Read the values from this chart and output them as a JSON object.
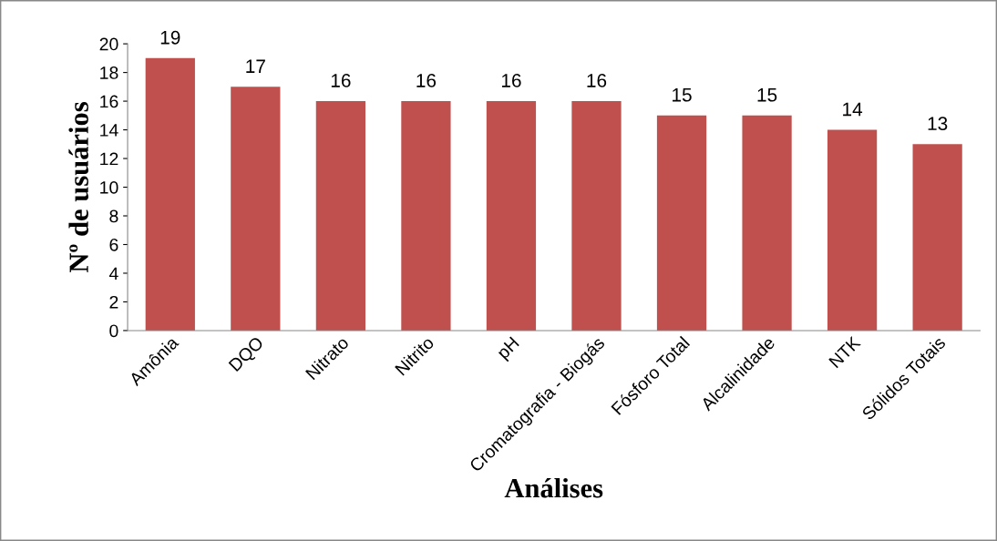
{
  "chart_data": {
    "type": "bar",
    "xlabel": "Análises",
    "ylabel": "Nº de usuários",
    "categories": [
      "Amônia",
      "DQO",
      "Nitrato",
      "Nitrito",
      "pH",
      "Cromatografia - Biogás",
      "Fósforo Total",
      "Alcalinidade",
      "NTK",
      "Sólidos Totais"
    ],
    "values": [
      19,
      17,
      16,
      16,
      16,
      16,
      15,
      15,
      14,
      13
    ],
    "color": "#c0504d",
    "ylim": [
      0,
      20
    ],
    "yticks": [
      0,
      2,
      4,
      6,
      8,
      10,
      12,
      14,
      16,
      18,
      20
    ],
    "data_labels": true,
    "grid": false,
    "legend": false
  }
}
